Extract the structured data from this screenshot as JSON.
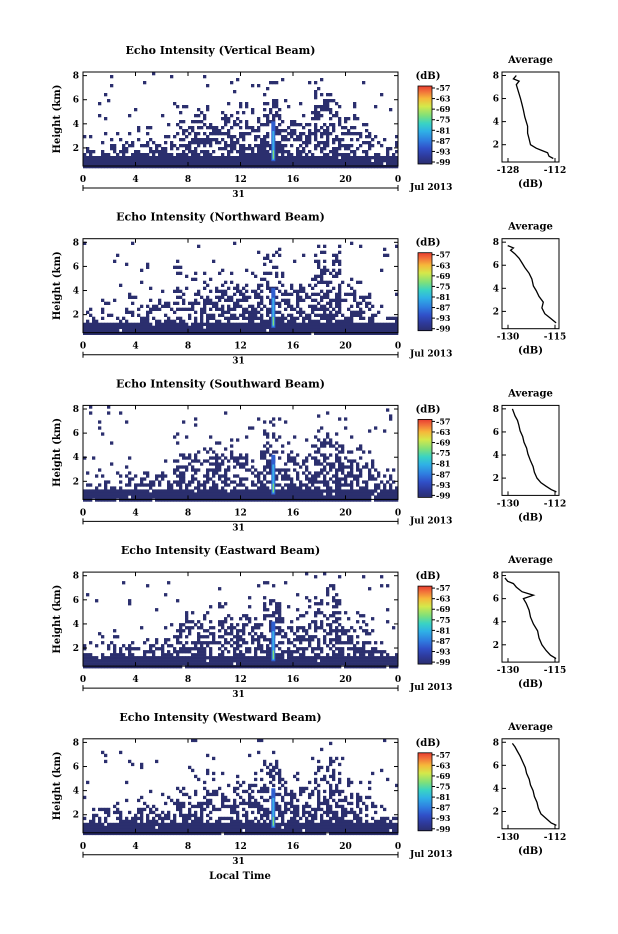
{
  "chart_data": [
    {
      "type": "heatmap",
      "title": "Echo Intensity (Vertical Beam)",
      "ylabel": "Height (km)",
      "x_ticks": [
        "0",
        "4",
        "8",
        "12",
        "16",
        "20",
        "0"
      ],
      "date_label": "31",
      "month_label": "Jul 2013",
      "y_ticks": [
        "2",
        "4",
        "6",
        "8"
      ],
      "xlim": [
        0,
        24
      ],
      "ylim": [
        0.5,
        8.3
      ],
      "colorbar_unit": "(dB)",
      "colorbar_ticks": [
        "-57",
        "-63",
        "-69",
        "-75",
        "-81",
        "-87",
        "-93",
        "-99"
      ],
      "profile": {
        "title": "Average",
        "xlabel": "(dB)",
        "x_ticks": [
          "-128",
          "-112"
        ],
        "y_ticks": [
          "2",
          "4",
          "6",
          "8"
        ],
        "xlim": [
          -130,
          -110
        ],
        "points": [
          [
            -112,
            0.8
          ],
          [
            -113.5,
            1
          ],
          [
            -114,
            1.3
          ],
          [
            -116,
            1.5
          ],
          [
            -118,
            1.7
          ],
          [
            -120,
            2
          ],
          [
            -120.5,
            2.5
          ],
          [
            -121,
            3
          ],
          [
            -121,
            3.6
          ],
          [
            -121.5,
            4
          ],
          [
            -122,
            4.4
          ],
          [
            -122.5,
            5
          ],
          [
            -123,
            5.5
          ],
          [
            -123.5,
            6
          ],
          [
            -124,
            6.4
          ],
          [
            -124.5,
            6.8
          ],
          [
            -125,
            7.2
          ],
          [
            -124,
            7.5
          ],
          [
            -126,
            7.7
          ],
          [
            -125,
            8
          ]
        ]
      }
    },
    {
      "type": "heatmap",
      "title": "Echo Intensity (Northward Beam)",
      "ylabel": "Height (km)",
      "x_ticks": [
        "0",
        "4",
        "8",
        "12",
        "16",
        "20",
        "0"
      ],
      "date_label": "31",
      "month_label": "Jul 2013",
      "y_ticks": [
        "2",
        "4",
        "6",
        "8"
      ],
      "xlim": [
        0,
        24
      ],
      "ylim": [
        0.5,
        8.3
      ],
      "colorbar_unit": "(dB)",
      "colorbar_ticks": [
        "-57",
        "-63",
        "-69",
        "-75",
        "-81",
        "-87",
        "-93",
        "-99"
      ],
      "profile": {
        "title": "Average",
        "xlabel": "(dB)",
        "x_ticks": [
          "-130",
          "-115"
        ],
        "y_ticks": [
          "2",
          "4",
          "6",
          "8"
        ],
        "xlim": [
          -132,
          -112
        ],
        "points": [
          [
            -113,
            1
          ],
          [
            -115,
            1.4
          ],
          [
            -117,
            1.8
          ],
          [
            -118,
            2.3
          ],
          [
            -117.5,
            2.8
          ],
          [
            -119,
            3.3
          ],
          [
            -120,
            3.8
          ],
          [
            -121,
            4.2
          ],
          [
            -121.5,
            4.8
          ],
          [
            -122.5,
            5.3
          ],
          [
            -124,
            5.8
          ],
          [
            -125,
            6.2
          ],
          [
            -126,
            6.6
          ],
          [
            -127.5,
            7
          ],
          [
            -129,
            7.3
          ],
          [
            -128,
            7.5
          ],
          [
            -130,
            7.7
          ]
        ]
      }
    },
    {
      "type": "heatmap",
      "title": "Echo Intensity (Southward Beam)",
      "ylabel": "Height (km)",
      "x_ticks": [
        "0",
        "4",
        "8",
        "12",
        "16",
        "20",
        "0"
      ],
      "date_label": "31",
      "month_label": "Jul 2013",
      "y_ticks": [
        "2",
        "4",
        "6",
        "8"
      ],
      "xlim": [
        0,
        24
      ],
      "ylim": [
        0.5,
        8.3
      ],
      "colorbar_unit": "(dB)",
      "colorbar_ticks": [
        "-57",
        "-63",
        "-69",
        "-75",
        "-81",
        "-87",
        "-93",
        "-99"
      ],
      "profile": {
        "title": "Average",
        "xlabel": "(dB)",
        "x_ticks": [
          "-130",
          "-112"
        ],
        "y_ticks": [
          "2",
          "4",
          "6",
          "8"
        ],
        "xlim": [
          -132,
          -110
        ],
        "points": [
          [
            -111,
            0.8
          ],
          [
            -113,
            1
          ],
          [
            -115,
            1.3
          ],
          [
            -117,
            1.6
          ],
          [
            -118.5,
            2
          ],
          [
            -119.5,
            2.5
          ],
          [
            -120,
            3
          ],
          [
            -121,
            3.5
          ],
          [
            -122,
            4.1
          ],
          [
            -122.5,
            4.6
          ],
          [
            -123.5,
            5.1
          ],
          [
            -124,
            5.6
          ],
          [
            -125,
            6.1
          ],
          [
            -125.5,
            6.6
          ],
          [
            -126,
            7
          ],
          [
            -127,
            7.4
          ],
          [
            -127.5,
            7.7
          ],
          [
            -128,
            8
          ]
        ]
      }
    },
    {
      "type": "heatmap",
      "title": "Echo Intensity (Eastward Beam)",
      "ylabel": "Height (km)",
      "x_ticks": [
        "0",
        "4",
        "8",
        "12",
        "16",
        "20",
        "0"
      ],
      "date_label": "31",
      "month_label": "Jul 2013",
      "y_ticks": [
        "2",
        "4",
        "6",
        "8"
      ],
      "xlim": [
        0,
        24
      ],
      "ylim": [
        0.5,
        8.3
      ],
      "colorbar_unit": "(dB)",
      "colorbar_ticks": [
        "-57",
        "-63",
        "-69",
        "-75",
        "-81",
        "-87",
        "-93",
        "-99"
      ],
      "profile": {
        "title": "Average",
        "xlabel": "(dB)",
        "x_ticks": [
          "-130",
          "-115"
        ],
        "y_ticks": [
          "2",
          "4",
          "6",
          "8"
        ],
        "xlim": [
          -132,
          -112
        ],
        "points": [
          [
            -113,
            0.8
          ],
          [
            -115,
            1.1
          ],
          [
            -116.5,
            1.5
          ],
          [
            -118,
            2
          ],
          [
            -119,
            2.6
          ],
          [
            -119.5,
            3.2
          ],
          [
            -121,
            3.8
          ],
          [
            -122,
            4.4
          ],
          [
            -122.5,
            5
          ],
          [
            -123.5,
            5.6
          ],
          [
            -124.5,
            6
          ],
          [
            -121,
            6.3
          ],
          [
            -125,
            6.6
          ],
          [
            -127,
            7
          ],
          [
            -128,
            7.3
          ],
          [
            -130,
            7.5
          ],
          [
            -131,
            7.8
          ]
        ]
      }
    },
    {
      "type": "heatmap",
      "title": "Echo Intensity (Westward Beam)",
      "ylabel": "Height (km)",
      "x_ticks": [
        "0",
        "4",
        "8",
        "12",
        "16",
        "20",
        "0"
      ],
      "date_label": "31",
      "month_label": "Jul 2013",
      "y_ticks": [
        "2",
        "4",
        "6",
        "8"
      ],
      "xlim": [
        0,
        24
      ],
      "ylim": [
        0.5,
        8.3
      ],
      "colorbar_unit": "(dB)",
      "colorbar_ticks": [
        "-57",
        "-63",
        "-69",
        "-75",
        "-81",
        "-87",
        "-93",
        "-99"
      ],
      "profile": {
        "title": "Average",
        "xlabel": "(dB)",
        "x_ticks": [
          "-130",
          "-112"
        ],
        "y_ticks": [
          "2",
          "4",
          "6",
          "8"
        ],
        "xlim": [
          -132,
          -110
        ],
        "points": [
          [
            -111,
            0.8
          ],
          [
            -113,
            1
          ],
          [
            -115,
            1.4
          ],
          [
            -117,
            1.8
          ],
          [
            -118,
            2.3
          ],
          [
            -118.5,
            2.8
          ],
          [
            -119.5,
            3.3
          ],
          [
            -120,
            3.8
          ],
          [
            -121,
            4.3
          ],
          [
            -121.5,
            4.8
          ],
          [
            -122.5,
            5.3
          ],
          [
            -123,
            5.8
          ],
          [
            -124,
            6.3
          ],
          [
            -125,
            6.8
          ],
          [
            -126,
            7.2
          ],
          [
            -127,
            7.6
          ],
          [
            -128,
            7.9
          ]
        ]
      }
    }
  ],
  "footer": {
    "xlabel": "Local Time"
  },
  "colors": {
    "scale": [
      "#2b2f6e",
      "#2e3a9c",
      "#3050c8",
      "#2f7de0",
      "#2fb1e6",
      "#39d3c4",
      "#7fe07a",
      "#d5e84a",
      "#f6b83a",
      "#f2703a",
      "#e83d30"
    ],
    "base_echo": "#2b2f6e",
    "spike": "#3aaee8"
  }
}
